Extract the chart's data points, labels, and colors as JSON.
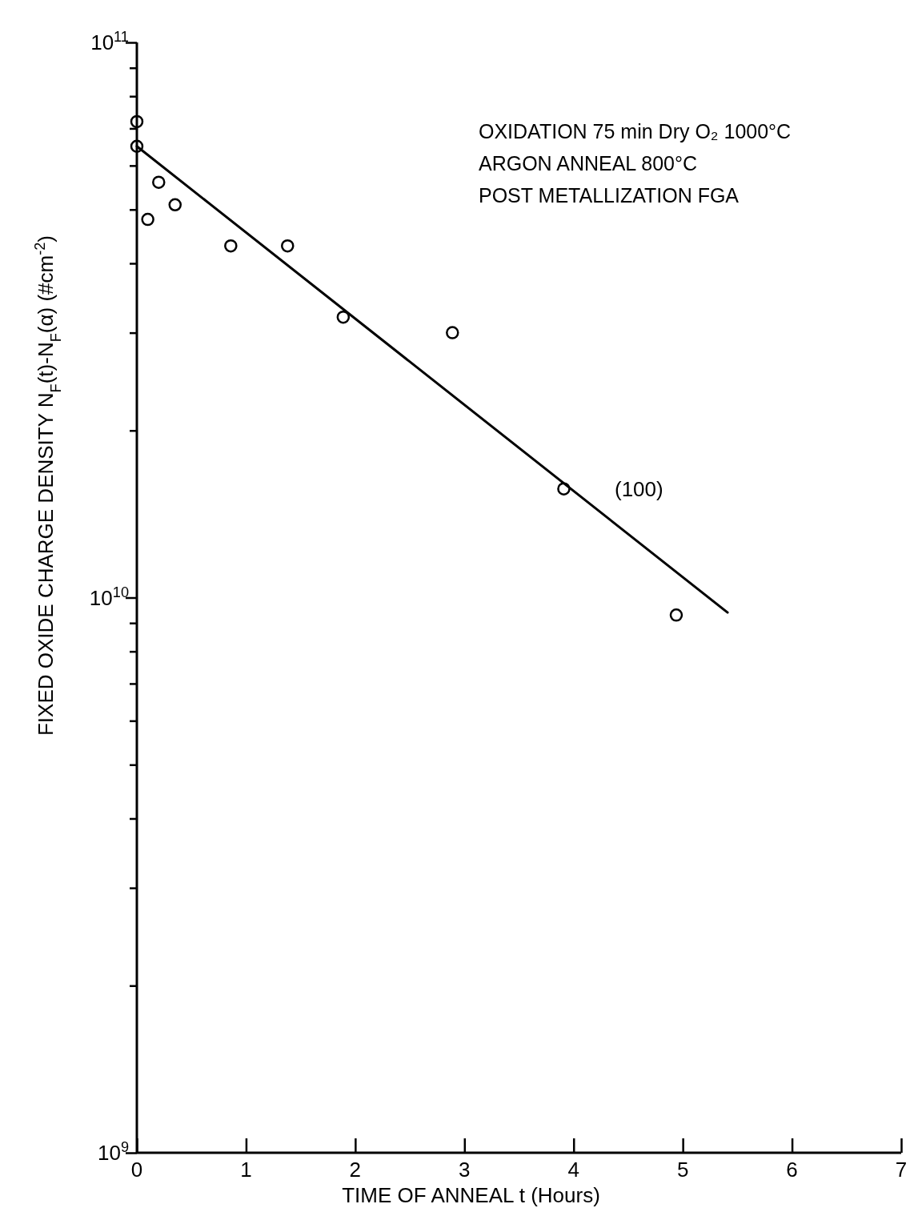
{
  "chart_data": {
    "type": "scatter",
    "xlabel": "TIME  OF  ANNEAL  t  (Hours)",
    "ylabel": "FIXED OXIDE CHARGE DENSITY   N$_{F}$(t)-N$_{F}$(α)  (#cm$^{-2}$)",
    "log": "y",
    "grid": false,
    "marker": "circle",
    "xlim": [
      0,
      7
    ],
    "xticks": [
      0,
      1,
      2,
      3,
      4,
      5,
      6,
      7
    ],
    "ylim": [
      1000000000,
      100000000000
    ],
    "yticks": [
      {
        "value": 1000000000,
        "label": "10$^{9}$"
      },
      {
        "value": 2000000000,
        "label": null
      },
      {
        "value": 3000000000,
        "label": null
      },
      {
        "value": 4000000000,
        "label": null
      },
      {
        "value": 5000000000,
        "label": null
      },
      {
        "value": 6000000000,
        "label": null
      },
      {
        "value": 7000000000,
        "label": null
      },
      {
        "value": 8000000000,
        "label": null
      },
      {
        "value": 9000000000,
        "label": null
      },
      {
        "value": 10000000000,
        "label": "10$^{10}$"
      },
      {
        "value": 20000000000,
        "label": null
      },
      {
        "value": 30000000000,
        "label": null
      },
      {
        "value": 40000000000,
        "label": null
      },
      {
        "value": 50000000000,
        "label": null
      },
      {
        "value": 60000000000,
        "label": null
      },
      {
        "value": 70000000000,
        "label": null
      },
      {
        "value": 80000000000,
        "label": null
      },
      {
        "value": 90000000000,
        "label": null
      },
      {
        "value": 100000000000,
        "label": "10$^{11}$"
      }
    ],
    "series": [
      {
        "color": "#000000",
        "x": [
          0,
          0,
          0.1,
          0.2,
          0.35,
          0.86,
          1.38,
          1.89,
          2.89,
          3.91,
          4.94
        ],
        "values": [
          72000000000,
          65000000000,
          48000000000,
          56000000000,
          51000000000,
          43000000000,
          43000000000,
          32000000000,
          30000000000,
          15700000000,
          9300000000
        ]
      },
      {
        "type": "line",
        "color": "#000000",
        "marker": "none",
        "line_style": "solid",
        "x": [
          0,
          5.41
        ],
        "values": [
          65000000000,
          9400000000
        ]
      }
    ],
    "annotations": [
      "OXIDATION  75 min  Dry O₂ 1000°C",
      "ARGON  ANNEAL   800°C",
      "POST  METALLIZATION   FGA",
      "(100)"
    ]
  }
}
